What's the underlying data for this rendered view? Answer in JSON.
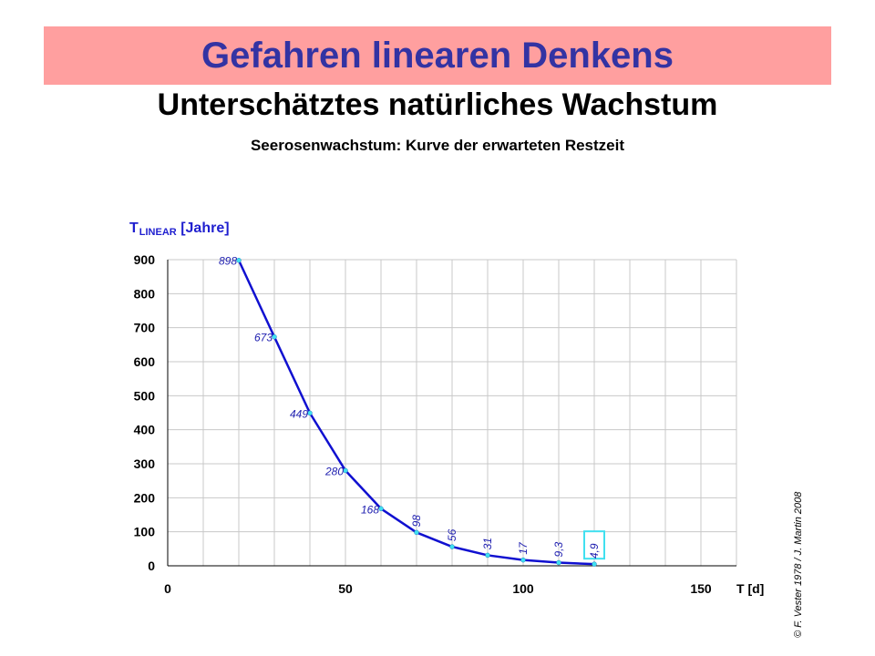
{
  "header": {
    "title": "Gefahren linearen Denkens",
    "subtitle": "Unterschätztes natürliches Wachstum",
    "caption": "Seerosenwachstum:  Kurve der erwarteten Restzeit"
  },
  "copyright": "© F. Vester 1978 / J. Martin 2008",
  "chart_data": {
    "type": "line",
    "ylabel_main": "T",
    "ylabel_sub": "LINEAR",
    "ylabel_unit": "[Jahre]",
    "xlabel": "T  [d]",
    "xlim": [
      0,
      160
    ],
    "ylim": [
      0,
      900
    ],
    "x_ticks": [
      0,
      50,
      100,
      150
    ],
    "y_ticks": [
      0,
      100,
      200,
      300,
      400,
      500,
      600,
      700,
      800,
      900
    ],
    "grid": true,
    "x": [
      20,
      30,
      40,
      50,
      60,
      70,
      80,
      90,
      100,
      110,
      120
    ],
    "y": [
      898,
      673,
      449,
      280,
      168,
      98,
      56,
      31,
      17,
      9.3,
      4.9
    ],
    "point_labels": [
      "898",
      "673",
      "449",
      "280",
      "168",
      "98",
      "56",
      "31",
      "17",
      "9,3",
      "4,9"
    ],
    "highlighted_label": "4,9",
    "colors": {
      "line": "#1010d0",
      "marker": "#40e0f0",
      "label": "#2020b0",
      "grid": "#c8c8c8",
      "highlight_box": "#40e0f0"
    }
  }
}
